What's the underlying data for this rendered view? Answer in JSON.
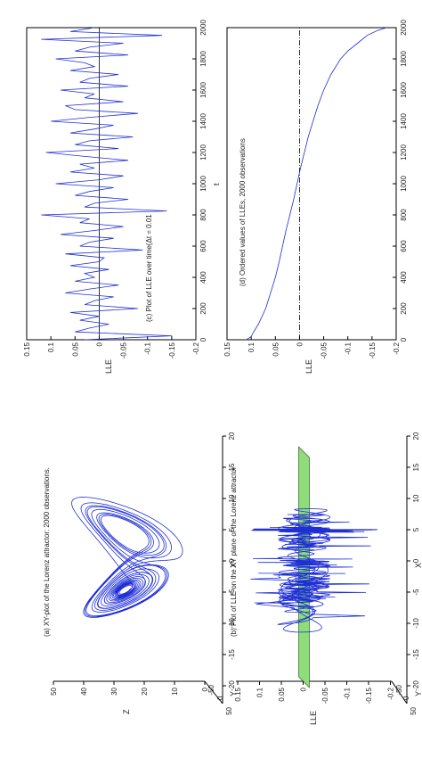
{
  "figure": {
    "panels": [
      {
        "id": "a",
        "title": "(a) XY-plot of the Lorenz attractor: 2000 observations.",
        "zlabel": "Z",
        "ylabel": "Y",
        "xlabel": "X",
        "z_ticks": [
          "50",
          "40",
          "30",
          "20",
          "10",
          "0"
        ],
        "x_ticks": [
          "-20",
          "-15",
          "-10",
          "-5",
          "0",
          "5",
          "10",
          "15",
          "20"
        ],
        "y_ticks": [
          "50",
          "0",
          "-50"
        ]
      },
      {
        "id": "b",
        "title": "(b) Plot of LLE on the XY plane of the Lorenz attractor",
        "zlabel": "LLE",
        "ylabel": "Y",
        "xlabel": "X",
        "z_ticks": [
          "0.15",
          "0.1",
          "0.05",
          "0",
          "-0.05",
          "-0.1",
          "-0.15",
          "-0.2"
        ],
        "x_ticks": [
          "-20",
          "-15",
          "-10",
          "-5",
          "0",
          "5",
          "10",
          "15",
          "20"
        ],
        "y_ticks": [
          "50",
          "0",
          "-50"
        ]
      },
      {
        "id": "c",
        "title": "(c) Plot of LLE over time(Δt = 0.01",
        "xlabel": "t",
        "ylabel": "LLE",
        "y_ticks": [
          "0.15",
          "0.1",
          "0.05",
          "0",
          "-0.05",
          "-0.1",
          "-0.15",
          "-0.2"
        ],
        "x_ticks": [
          "0",
          "200",
          "400",
          "600",
          "800",
          "1000",
          "1200",
          "1400",
          "1600",
          "1800",
          "2000"
        ]
      },
      {
        "id": "d",
        "title": "(d) Ordered values of LLEs, 2000 observations",
        "xlabel": "",
        "ylabel": "LLE",
        "y_ticks": [
          "0.15",
          "0.1",
          "0.05",
          "0",
          "-0.05",
          "-0.1",
          "-0.15",
          "-0.2"
        ],
        "x_ticks": [
          "0",
          "200",
          "400",
          "600",
          "800",
          "1000",
          "1200",
          "1400",
          "1600",
          "1800",
          "2000"
        ]
      }
    ],
    "colors": {
      "trace": "#1f2fd6",
      "plane": "#8fdc7a",
      "axis": "#000000"
    }
  },
  "chart_data": [
    {
      "type": "line",
      "title": "(a) XY-plot of the Lorenz attractor: 2000 observations.",
      "xlabel": "X",
      "ylabel": "Y",
      "zlabel": "Z",
      "xlim": [
        -20,
        20
      ],
      "ylim": [
        -50,
        50
      ],
      "zlim": [
        0,
        50
      ],
      "description_series": "Lorenz attractor trajectory",
      "wings": [
        {
          "center_x": -8.5,
          "center_z": 27
        },
        {
          "center_x": 8.5,
          "center_z": 27
        }
      ]
    },
    {
      "type": "line",
      "title": "(b) Plot of LLE on the XY plane of the Lorenz attractor",
      "xlabel": "X",
      "ylabel": "Y",
      "zlabel": "LLE",
      "xlim": [
        -20,
        20
      ],
      "ylim": [
        -50,
        50
      ],
      "zlim": [
        -0.2,
        0.15
      ]
    },
    {
      "type": "line",
      "title": "(c) Plot of LLE over time(Δt = 0.01",
      "xlabel": "t",
      "ylabel": "LLE",
      "xlim": [
        0,
        2000
      ],
      "ylim": [
        -0.2,
        0.15
      ],
      "x": [
        0,
        25,
        50,
        75,
        100,
        125,
        150,
        175,
        200,
        225,
        250,
        275,
        300,
        325,
        350,
        375,
        400,
        425,
        450,
        475,
        500,
        525,
        550,
        575,
        600,
        625,
        650,
        675,
        700,
        725,
        750,
        775,
        800,
        825,
        850,
        875,
        900,
        925,
        950,
        975,
        1000,
        1025,
        1050,
        1075,
        1100,
        1125,
        1150,
        1175,
        1200,
        1225,
        1250,
        1275,
        1300,
        1325,
        1350,
        1375,
        1400,
        1425,
        1450,
        1475,
        1500,
        1525,
        1550,
        1575,
        1600,
        1625,
        1650,
        1675,
        1700,
        1725,
        1750,
        1775,
        1800,
        1825,
        1850,
        1875,
        1900,
        1925,
        1950,
        1975,
        2000
      ],
      "y": [
        0.03,
        -0.15,
        0.05,
        0.02,
        -0.02,
        0.04,
        0.0,
        0.06,
        -0.08,
        0.03,
        0.01,
        -0.03,
        0.07,
        0.02,
        -0.04,
        0.05,
        0.01,
        0.03,
        -0.02,
        0.06,
        0.0,
        -0.01,
        0.07,
        -0.09,
        0.04,
        0.02,
        -0.03,
        0.08,
        0.01,
        -0.05,
        0.04,
        0.02,
        0.12,
        -0.14,
        0.03,
        0.01,
        -0.06,
        0.05,
        0.02,
        -0.03,
        0.09,
        0.0,
        -0.05,
        0.06,
        0.01,
        0.04,
        -0.06,
        0.03,
        0.11,
        -0.04,
        0.05,
        0.02,
        -0.07,
        0.06,
        0.01,
        -0.03,
        0.1,
        0.02,
        -0.08,
        0.05,
        0.07,
        -0.05,
        0.03,
        0.01,
        0.08,
        -0.06,
        0.04,
        0.02,
        -0.04,
        0.06,
        0.01,
        0.03,
        0.09,
        -0.06,
        0.05,
        0.02,
        -0.05,
        0.12,
        -0.13,
        0.06,
        0.01
      ]
    },
    {
      "type": "line",
      "title": "(d) Ordered values of LLEs, 2000 observations",
      "ylabel": "LLE",
      "xlim": [
        0,
        2000
      ],
      "ylim": [
        -0.2,
        0.15
      ],
      "x": [
        0,
        20,
        50,
        100,
        200,
        300,
        400,
        500,
        600,
        700,
        800,
        900,
        1000,
        1100,
        1200,
        1300,
        1400,
        1500,
        1600,
        1700,
        1800,
        1850,
        1900,
        1950,
        1980,
        2000
      ],
      "y": [
        0.11,
        0.1,
        0.095,
        0.085,
        0.07,
        0.06,
        0.05,
        0.042,
        0.035,
        0.028,
        0.02,
        0.012,
        0.005,
        -0.002,
        -0.01,
        -0.018,
        -0.028,
        -0.038,
        -0.05,
        -0.065,
        -0.085,
        -0.1,
        -0.12,
        -0.14,
        -0.16,
        -0.18
      ]
    }
  ]
}
